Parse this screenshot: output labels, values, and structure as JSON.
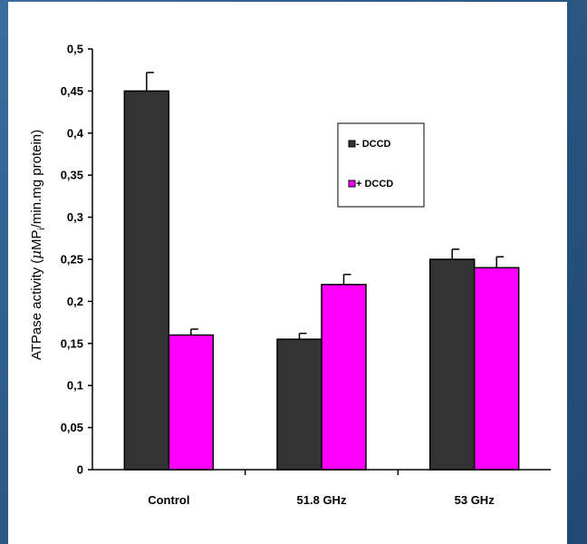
{
  "chart_data": {
    "type": "bar",
    "title": "",
    "xlabel": "",
    "ylabel_parts": {
      "prefix": "ATPase activity (",
      "mu": "μ",
      "unit": "MP",
      "subscript": "i",
      "suffix": "/min.mg protein)"
    },
    "categories": [
      "Control",
      "51.8 GHz",
      "53 GHz"
    ],
    "series": [
      {
        "name": "- DCCD",
        "color": "#333333",
        "values": [
          0.45,
          0.155,
          0.25
        ],
        "errors": [
          0.022,
          0.007,
          0.012
        ]
      },
      {
        "name": "+ DCCD",
        "color": "#ff00ff",
        "values": [
          0.16,
          0.22,
          0.24
        ],
        "errors": [
          0.007,
          0.012,
          0.013
        ]
      }
    ],
    "ylim": [
      0,
      0.5
    ],
    "yticks": [
      {
        "value": 0,
        "label": "0"
      },
      {
        "value": 0.05,
        "label": "0,05"
      },
      {
        "value": 0.1,
        "label": "0,1"
      },
      {
        "value": 0.15,
        "label": "0,15"
      },
      {
        "value": 0.2,
        "label": "0,2"
      },
      {
        "value": 0.25,
        "label": "0,25"
      },
      {
        "value": 0.3,
        "label": "0,3"
      },
      {
        "value": 0.35,
        "label": "0,35"
      },
      {
        "value": 0.4,
        "label": "0,4"
      },
      {
        "value": 0.45,
        "label": "0,45"
      },
      {
        "value": 0.5,
        "label": "0,5"
      }
    ],
    "grid": false,
    "legend_position": "upper-right"
  }
}
